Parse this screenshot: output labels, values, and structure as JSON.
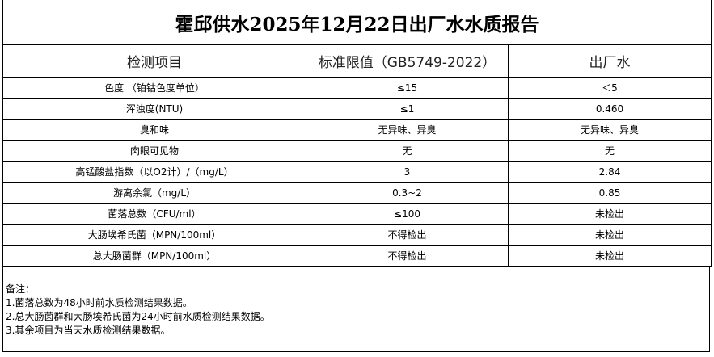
{
  "title": "霍邱供水2025年12月22日出厂水水质报告",
  "headers": [
    "检测项目",
    "标准限值（GB5749-2022）",
    "出厂水"
  ],
  "rows": [
    {
      "item": "色度 （铂钴色度单位）",
      "limit": "≤15",
      "value": "＜5"
    },
    {
      "item": "浑浊度(NTU)",
      "limit": "≤1",
      "value": "0.460"
    },
    {
      "item": "臭和味",
      "limit": "无异味、异臭",
      "value": "无异味、异臭"
    },
    {
      "item": "肉眼可见物",
      "limit": "无",
      "value": "无"
    },
    {
      "item": "高锰酸盐指数（以O2计）/（mg/L）",
      "limit": "3",
      "value": "2.84"
    },
    {
      "item": "游离余氯（mg/L）",
      "limit": "0.3~2",
      "value": "0.85"
    },
    {
      "item": "菌落总数（CFU/ml）",
      "limit": "≤100",
      "value": "未检出"
    },
    {
      "item": "大肠埃希氏菌（MPN/100ml）",
      "limit": "不得检出",
      "value": "未检出"
    },
    {
      "item": "总大肠菌群（MPN/100ml）",
      "limit": "不得检出",
      "value": "未检出"
    }
  ],
  "notes": {
    "label": "备注：",
    "lines": [
      "1.菌落总数为48小时前水质检测结果数据。",
      "2.总大肠菌群和大肠埃希氏菌为24小时前水质检测结果数据。",
      "3.其余项目为当天水质检测结果数据。"
    ]
  }
}
